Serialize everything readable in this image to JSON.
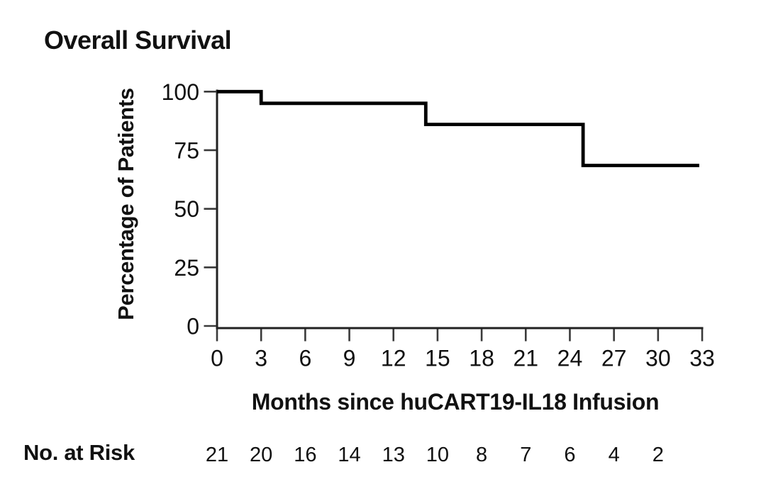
{
  "figure": {
    "title": "Overall Survival",
    "risk_label": "No. at Risk"
  },
  "chart_data": {
    "type": "line",
    "subtype": "kaplan-meier-step",
    "title": "Overall Survival",
    "xlabel": "Months since huCART19-IL18 Infusion",
    "ylabel": "Percentage of Patients",
    "xlim": [
      0,
      33
    ],
    "ylim": [
      0,
      100
    ],
    "x_ticks": [
      0,
      3,
      6,
      9,
      12,
      15,
      18,
      21,
      24,
      27,
      30,
      33
    ],
    "y_ticks": [
      0,
      25,
      50,
      75,
      100
    ],
    "grid": false,
    "legend": "none",
    "series": [
      {
        "name": "Overall Survival",
        "step_points": [
          [
            0,
            100
          ],
          [
            3,
            100
          ],
          [
            3,
            95
          ],
          [
            14.2,
            95
          ],
          [
            14.2,
            86
          ],
          [
            24.9,
            86
          ],
          [
            24.9,
            68.5
          ],
          [
            32.8,
            68.5
          ]
        ],
        "drop_months": [
          3,
          14.2,
          24.9
        ],
        "plateau_percents": [
          100,
          95,
          86,
          68.5
        ]
      }
    ],
    "at_risk": {
      "label": "No. at Risk",
      "months": [
        0,
        3,
        6,
        9,
        12,
        15,
        18,
        21,
        24,
        27,
        30
      ],
      "counts": [
        21,
        20,
        16,
        14,
        13,
        10,
        8,
        7,
        6,
        4,
        2
      ]
    },
    "colors": {
      "curve": "#000000",
      "spine": "#222222",
      "tick": "#3a3a3a",
      "text": "#101010",
      "background": "#ffffff"
    }
  }
}
